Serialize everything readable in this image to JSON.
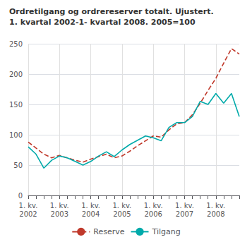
{
  "chart_data": {
    "type": "line",
    "title": "Ordretilgang og ordrereserver totalt. Ujustert.",
    "subtitle": "1. kvartal 2002-1- kvartal 2008. 2005=100",
    "categories": [
      "1. kv.\n2002",
      null,
      null,
      null,
      "1. kv.\n2003",
      null,
      null,
      null,
      "1. kv.\n2004",
      null,
      null,
      null,
      "1. kv.\n2005",
      null,
      null,
      null,
      "1. kv.\n2006",
      null,
      null,
      null,
      "1. kv.\n2007",
      null,
      null,
      null,
      "1. kv.\n2008",
      null,
      null,
      null
    ],
    "series": [
      {
        "name": "Reserve",
        "color": "#c0392b",
        "line_style": "dashed",
        "marker": "none",
        "values": [
          88,
          78,
          68,
          62,
          66,
          62,
          58,
          55,
          60,
          64,
          68,
          62,
          65,
          73,
          82,
          90,
          98,
          96,
          108,
          118,
          120,
          133,
          152,
          173,
          193,
          218,
          242,
          233
        ]
      },
      {
        "name": "Tilgang",
        "color": "#00aaaa",
        "line_style": "solid",
        "marker": "none",
        "values": [
          80,
          68,
          45,
          58,
          65,
          62,
          56,
          50,
          56,
          65,
          72,
          64,
          75,
          84,
          91,
          98,
          95,
          90,
          112,
          120,
          120,
          130,
          155,
          150,
          168,
          152,
          168,
          130
        ]
      }
    ],
    "ylim": [
      0,
      250
    ],
    "yticks": [
      0,
      50,
      100,
      150,
      200,
      250
    ],
    "grid": true,
    "legend": "bottom"
  }
}
